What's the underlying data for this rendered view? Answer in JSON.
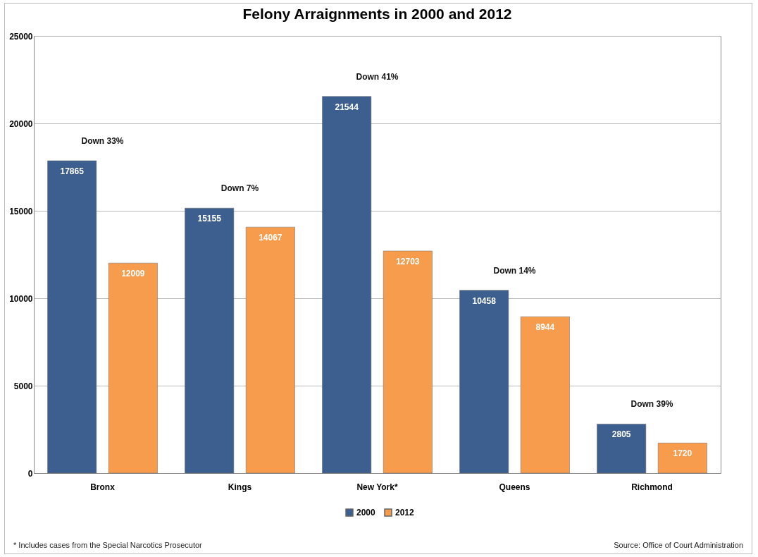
{
  "chart_data": {
    "type": "bar",
    "title": "Felony Arraignments in 2000 and 2012",
    "categories": [
      "Bronx",
      "Kings",
      "New York*",
      "Queens",
      "Richmond"
    ],
    "series": [
      {
        "name": "2000",
        "color": "#3c5f8f",
        "values": [
          17865,
          15155,
          21544,
          10458,
          2805
        ]
      },
      {
        "name": "2012",
        "color": "#f79c4c",
        "values": [
          12009,
          14067,
          12703,
          8944,
          1720
        ]
      }
    ],
    "ylim": [
      0,
      25000
    ],
    "yticks": [
      0,
      5000,
      10000,
      15000,
      20000,
      25000
    ],
    "grid": "y",
    "legend": "bottom",
    "data_labels": true,
    "annotations": [
      "Down 33%",
      "Down 7%",
      "Down 41%",
      "Down 14%",
      "Down 39%",
      "* Includes cases from the Special Narcotics Prosecutor",
      "Source: Office of Court Administration"
    ]
  }
}
